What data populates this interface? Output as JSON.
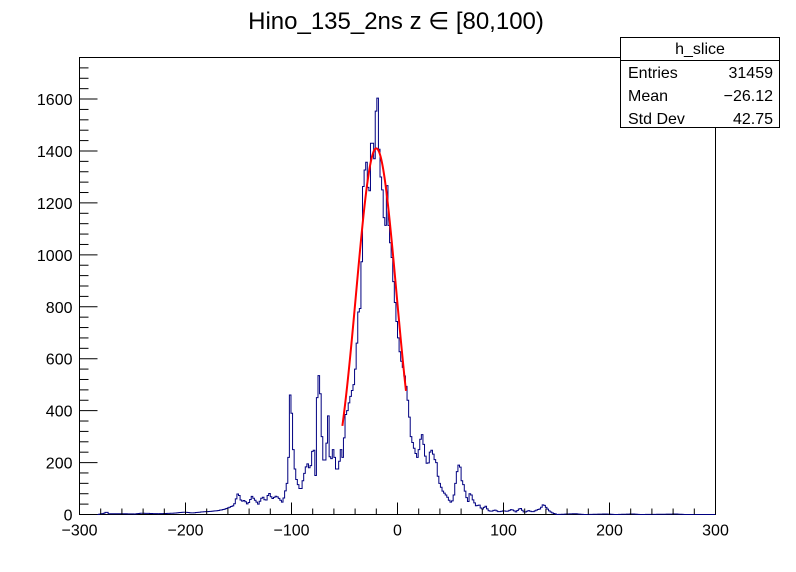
{
  "chart_data": {
    "type": "histogram",
    "title": "Hino_135_2ns z  ∈ [80,100)",
    "xlabel": "",
    "ylabel": "",
    "xlim": [
      -300,
      300
    ],
    "ylim": [
      0,
      1760
    ],
    "x_ticks": [
      -300,
      -200,
      -100,
      0,
      100,
      200,
      300
    ],
    "y_ticks": [
      0,
      200,
      400,
      600,
      800,
      1000,
      1200,
      1400,
      1600
    ],
    "grid": false,
    "bin_width": 1.5,
    "series": [
      {
        "style": "step",
        "color": "#000080",
        "bins": [
          [
            -283.5,
            0
          ],
          [
            -278,
            4
          ],
          [
            -275,
            10
          ],
          [
            -273,
            3
          ],
          [
            -260,
            3
          ],
          [
            -248,
            2
          ],
          [
            -243,
            5
          ],
          [
            -226,
            3
          ],
          [
            -212,
            5
          ],
          [
            -202,
            9
          ],
          [
            -194,
            6
          ],
          [
            -185,
            10
          ],
          [
            -177,
            12
          ],
          [
            -170,
            15
          ],
          [
            -164,
            20
          ],
          [
            -159,
            28
          ],
          [
            -155,
            35
          ],
          [
            -151,
            85
          ],
          [
            -148,
            50
          ],
          [
            -145,
            55
          ],
          [
            -142,
            38
          ],
          [
            -138,
            70
          ],
          [
            -135,
            55
          ],
          [
            -132,
            40
          ],
          [
            -128,
            70
          ],
          [
            -125,
            50
          ],
          [
            -122,
            85
          ],
          [
            -119,
            60
          ],
          [
            -115,
            72
          ],
          [
            -112,
            60
          ],
          [
            -109,
            45
          ],
          [
            -106,
            100
          ],
          [
            -104,
            140
          ],
          [
            -102,
            460
          ],
          [
            -100.5,
            390
          ],
          [
            -99,
            250
          ],
          [
            -97,
            150
          ],
          [
            -95,
            120
          ],
          [
            -92,
            90
          ],
          [
            -89,
            150
          ],
          [
            -86,
            200
          ],
          [
            -83,
            170
          ],
          [
            -80,
            280
          ],
          [
            -78,
            150
          ],
          [
            -76,
            550
          ],
          [
            -74,
            520
          ],
          [
            -72,
            300
          ],
          [
            -70,
            180
          ],
          [
            -68,
            240
          ],
          [
            -66,
            380
          ],
          [
            -64,
            170
          ],
          [
            -62,
            260
          ],
          [
            -60,
            220
          ],
          [
            -58,
            160
          ],
          [
            -56,
            190
          ],
          [
            -54,
            250
          ],
          [
            -52,
            210
          ],
          [
            -50,
            380
          ],
          [
            -48,
            400
          ],
          [
            -46,
            440
          ],
          [
            -44,
            470
          ],
          [
            -42,
            500
          ],
          [
            -40,
            580
          ],
          [
            -38.5,
            700
          ],
          [
            -37,
            820
          ],
          [
            -35.5,
            780
          ],
          [
            -34,
            1070
          ],
          [
            -32.5,
            1360
          ],
          [
            -31,
            1310
          ],
          [
            -29.5,
            1380
          ],
          [
            -28,
            1200
          ],
          [
            -26.5,
            1270
          ],
          [
            -25,
            1510
          ],
          [
            -23.5,
            1390
          ],
          [
            -22,
            1360
          ],
          [
            -20.5,
            1650
          ],
          [
            -19,
            1580
          ],
          [
            -17.5,
            1320
          ],
          [
            -16,
            1290
          ],
          [
            -14.5,
            1230
          ],
          [
            -13,
            1100
          ],
          [
            -11.5,
            1120
          ],
          [
            -10,
            1340
          ],
          [
            -8.5,
            1000
          ],
          [
            -7,
            1070
          ],
          [
            -5.5,
            950
          ],
          [
            -4,
            870
          ],
          [
            -2.5,
            790
          ],
          [
            -1,
            720
          ],
          [
            0.5,
            660
          ],
          [
            2,
            610
          ],
          [
            3.5,
            580
          ],
          [
            5,
            560
          ],
          [
            6.5,
            520
          ],
          [
            8,
            480
          ],
          [
            10,
            400
          ],
          [
            12,
            300
          ],
          [
            14,
            270
          ],
          [
            16,
            240
          ],
          [
            18,
            220
          ],
          [
            20,
            260
          ],
          [
            22,
            320
          ],
          [
            24,
            270
          ],
          [
            26,
            210
          ],
          [
            28,
            185
          ],
          [
            30,
            240
          ],
          [
            32,
            250
          ],
          [
            34,
            215
          ],
          [
            36,
            200
          ],
          [
            38,
            130
          ],
          [
            40,
            110
          ],
          [
            42,
            90
          ],
          [
            44,
            80
          ],
          [
            46,
            70
          ],
          [
            48,
            55
          ],
          [
            50,
            45
          ],
          [
            52,
            60
          ],
          [
            54,
            120
          ],
          [
            56,
            180
          ],
          [
            58,
            200
          ],
          [
            60,
            130
          ],
          [
            62,
            110
          ],
          [
            64,
            70
          ],
          [
            66,
            50
          ],
          [
            68,
            90
          ],
          [
            70,
            60
          ],
          [
            72,
            45
          ],
          [
            74,
            30
          ],
          [
            76,
            40
          ],
          [
            78,
            25
          ],
          [
            80,
            20
          ],
          [
            82,
            35
          ],
          [
            85,
            15
          ],
          [
            88,
            12
          ],
          [
            91,
            18
          ],
          [
            95,
            10
          ],
          [
            99,
            14
          ],
          [
            103,
            12
          ],
          [
            107,
            20
          ],
          [
            111,
            10
          ],
          [
            115,
            25
          ],
          [
            119,
            8
          ],
          [
            123,
            15
          ],
          [
            127,
            10
          ],
          [
            131,
            18
          ],
          [
            134,
            22
          ],
          [
            137,
            40
          ],
          [
            140,
            25
          ],
          [
            143,
            12
          ],
          [
            146,
            5
          ],
          [
            150,
            0
          ],
          [
            160,
            2
          ],
          [
            167,
            3
          ],
          [
            176,
            0
          ],
          [
            196,
            2
          ],
          [
            205,
            0
          ],
          [
            221,
            2
          ],
          [
            228,
            0
          ],
          [
            250,
            1
          ],
          [
            262,
            2
          ],
          [
            270,
            0
          ]
        ]
      }
    ],
    "fit": {
      "type": "gaussian",
      "color": "#ff0000",
      "mean": -20,
      "sigma": 19,
      "amplitude": 1410,
      "range": [
        -52,
        8
      ]
    },
    "stats_box": {
      "name": "h_slice",
      "rows": [
        {
          "label": "Entries",
          "value": "31459"
        },
        {
          "label": "Mean",
          "value": "−26.12"
        },
        {
          "label": "Std Dev",
          "value": "42.75"
        }
      ]
    }
  }
}
